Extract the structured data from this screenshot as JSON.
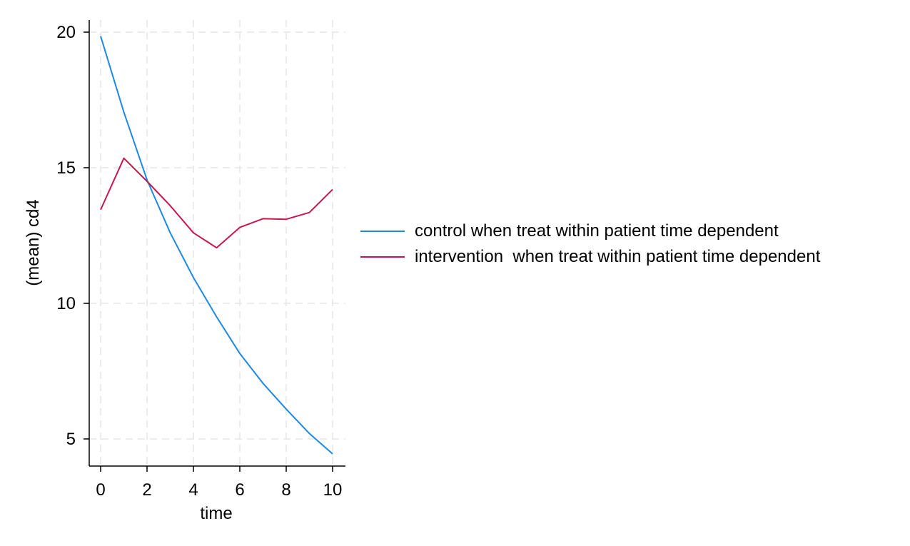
{
  "chart_data": {
    "type": "line",
    "xlabel": "time",
    "ylabel": "(mean) cd4",
    "xlim": [
      0,
      10
    ],
    "ylim": [
      4,
      20.5
    ],
    "xticks": [
      0,
      2,
      4,
      6,
      8,
      10
    ],
    "yticks": [
      5,
      10,
      15,
      20
    ],
    "grid": true,
    "legend_position": "right",
    "x": [
      0,
      1,
      2,
      3,
      4,
      5,
      6,
      7,
      8,
      9,
      10
    ],
    "series": [
      {
        "name": "control when treat within patient time dependent",
        "color": "#1e88e5",
        "values": [
          19.85,
          17.05,
          14.55,
          12.6,
          10.95,
          9.5,
          8.15,
          7.05,
          6.1,
          5.2,
          4.45
        ]
      },
      {
        "name": "intervention  when treat within patient time dependent",
        "color": "#c8174e",
        "values": [
          13.45,
          15.35,
          14.5,
          13.6,
          12.6,
          12.05,
          12.8,
          13.12,
          13.1,
          13.35,
          14.2
        ]
      }
    ]
  }
}
